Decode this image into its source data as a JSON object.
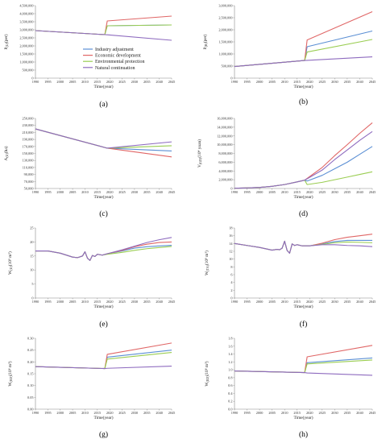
{
  "colors": {
    "industry": "#5b8fd4",
    "economic": "#e06666",
    "environment": "#9acd52",
    "natural": "#8e6bbf"
  },
  "legend": {
    "placement": "inside-right",
    "entries": [
      {
        "label": "Industry adjustment",
        "color": "#5b8fd4"
      },
      {
        "label": "Economic development",
        "color": "#e06666"
      },
      {
        "label": "Environmental protection",
        "color": "#9acd52"
      },
      {
        "label": "Natural continuation",
        "color": "#8e6bbf"
      }
    ]
  },
  "chart_data": [
    {
      "type": "line",
      "caption": "(a)",
      "ylabel": "P",
      "ysub": "(U)",
      "yunit": "(per)",
      "xlabel": "Time(year)",
      "x": [
        1990,
        2018,
        2019,
        2045
      ],
      "xticks": [
        1990,
        1995,
        2000,
        2005,
        2010,
        2015,
        2020,
        2025,
        2030,
        2035,
        2040,
        2045
      ],
      "ylim": [
        0,
        4500000
      ],
      "yticks": [
        0,
        500000,
        1000000,
        1500000,
        2000000,
        2500000,
        3000000,
        3500000,
        4000000,
        4500000
      ],
      "yticklabels": [
        "0",
        "500,000",
        "1,000,000",
        "1,500,000",
        "2,000,000",
        "2,500,000",
        "3,000,000",
        "3,500,000",
        "4,000,000",
        "4,500,000"
      ],
      "series": [
        {
          "key": "industry",
          "values": [
            2950000,
            2700000,
            3250000,
            3300000
          ]
        },
        {
          "key": "economic",
          "values": [
            2950000,
            2700000,
            3550000,
            3850000
          ]
        },
        {
          "key": "environment",
          "values": [
            2950000,
            2700000,
            3250000,
            3300000
          ]
        },
        {
          "key": "natural",
          "values": [
            2950000,
            2700000,
            2690000,
            2350000
          ]
        }
      ]
    },
    {
      "type": "line",
      "caption": "(b)",
      "ylabel": "P",
      "ysub": "(R)",
      "yunit": "(per)",
      "xlabel": "Time(year)",
      "x": [
        1990,
        2018,
        2019,
        2045
      ],
      "xticks": [
        1990,
        1995,
        2000,
        2005,
        2010,
        2015,
        2020,
        2025,
        2030,
        2035,
        2040,
        2045
      ],
      "ylim": [
        0,
        3000000
      ],
      "yticks": [
        0,
        500000,
        1000000,
        1500000,
        2000000,
        2500000,
        3000000
      ],
      "yticklabels": [
        "0",
        "500,000",
        "1,000,000",
        "1,500,000",
        "2,000,000",
        "2,500,000",
        "3,000,000"
      ],
      "series": [
        {
          "key": "industry",
          "values": [
            480000,
            730000,
            1300000,
            1950000
          ]
        },
        {
          "key": "economic",
          "values": [
            480000,
            730000,
            1580000,
            2750000
          ]
        },
        {
          "key": "environment",
          "values": [
            480000,
            730000,
            1080000,
            1600000
          ]
        },
        {
          "key": "natural",
          "values": [
            480000,
            730000,
            735000,
            880000
          ]
        }
      ]
    },
    {
      "type": "line",
      "caption": "(c)",
      "ylabel": "A",
      "ysub": "(U)",
      "yunit": "(ha)",
      "xlabel": "Time(year)",
      "x": [
        1990,
        2019,
        2045
      ],
      "xticks": [
        1990,
        1995,
        2000,
        2005,
        2010,
        2015,
        2020,
        2025,
        2030,
        2035,
        2040,
        2045
      ],
      "ylim": [
        50000,
        250000
      ],
      "yticks": [
        50000,
        70000,
        90000,
        110000,
        130000,
        150000,
        170000,
        190000,
        210000,
        230000,
        250000
      ],
      "yticklabels": [
        "50,000",
        "70,000",
        "90,000",
        "110,000",
        "130,000",
        "150,000",
        "170,000",
        "190,000",
        "210,000",
        "230,000",
        "250,000"
      ],
      "series": [
        {
          "key": "industry",
          "values": [
            220000,
            165000,
            157000
          ]
        },
        {
          "key": "economic",
          "values": [
            220000,
            165000,
            140000
          ]
        },
        {
          "key": "environment",
          "values": [
            220000,
            165000,
            172000
          ]
        },
        {
          "key": "natural",
          "values": [
            220000,
            165000,
            183000
          ]
        }
      ]
    },
    {
      "type": "line",
      "caption": "(d)",
      "ylabel": "V",
      "ysub": "(GD)",
      "yunit": "(10⁴ yuan)",
      "xlabel": "Time(year)",
      "x": [
        1990,
        1995,
        2000,
        2005,
        2010,
        2015,
        2018,
        2019,
        2025,
        2030,
        2035,
        2040,
        2045
      ],
      "xticks": [
        1990,
        1995,
        2000,
        2005,
        2010,
        2015,
        2020,
        2025,
        2030,
        2035,
        2040,
        2045
      ],
      "ylim": [
        0,
        16000000
      ],
      "yticks": [
        0,
        2000000,
        4000000,
        6000000,
        8000000,
        10000000,
        12000000,
        14000000,
        16000000
      ],
      "yticklabels": [
        "0",
        "2,000,000",
        "4,000,000",
        "6,000,000",
        "8,000,000",
        "10,000,000",
        "12,000,000",
        "14,000,000",
        "16,000,000"
      ],
      "series": [
        {
          "key": "industry",
          "values": [
            50000,
            120000,
            250000,
            500000,
            900000,
            1500000,
            1900000,
            1700000,
            3000000,
            4500000,
            6000000,
            7800000,
            9600000
          ]
        },
        {
          "key": "economic",
          "values": [
            50000,
            120000,
            250000,
            500000,
            900000,
            1500000,
            1900000,
            2300000,
            4800000,
            7500000,
            10000000,
            12600000,
            15000000
          ]
        },
        {
          "key": "environment",
          "values": [
            50000,
            120000,
            250000,
            500000,
            900000,
            1500000,
            1900000,
            900000,
            1400000,
            2000000,
            2600000,
            3200000,
            3800000
          ]
        },
        {
          "key": "natural",
          "values": [
            50000,
            120000,
            250000,
            500000,
            900000,
            1500000,
            1900000,
            2200000,
            4200000,
            6600000,
            8800000,
            11000000,
            13000000
          ]
        }
      ]
    },
    {
      "type": "line",
      "caption": "(e)",
      "ylabel": "W",
      "ysub": "(U)",
      "yunit": "(10⁸ m³)",
      "xlabel": "Time(year)",
      "x": [
        1990,
        1995,
        2000,
        2005,
        2007,
        2009,
        2010,
        2011,
        2012,
        2013,
        2014,
        2015,
        2017,
        2019,
        2025,
        2030,
        2035,
        2040,
        2045
      ],
      "xticks": [
        1990,
        1995,
        2000,
        2005,
        2010,
        2015,
        2020,
        2025,
        2030,
        2035,
        2040,
        2045
      ],
      "ylim": [
        0,
        25
      ],
      "yticks": [
        0,
        5,
        10,
        15,
        20,
        25
      ],
      "yticklabels": [
        "0",
        "5",
        "10",
        "15",
        "20",
        "25"
      ],
      "series": [
        {
          "key": "industry",
          "values": [
            16.8,
            16.8,
            16,
            14.6,
            14.4,
            15,
            16.5,
            14.2,
            13.4,
            15.2,
            14.8,
            15.6,
            15.3,
            15.8,
            16.8,
            17.8,
            18.3,
            18.6,
            18.8
          ]
        },
        {
          "key": "economic",
          "values": [
            16.8,
            16.8,
            16,
            14.6,
            14.4,
            15,
            16.5,
            14.2,
            13.4,
            15.2,
            14.8,
            15.6,
            15.3,
            15.8,
            17,
            18.3,
            19.2,
            19.8,
            20
          ]
        },
        {
          "key": "environment",
          "values": [
            16.8,
            16.8,
            16,
            14.6,
            14.4,
            15,
            16.5,
            14.2,
            13.4,
            15.2,
            14.8,
            15.6,
            15.3,
            15.6,
            16.3,
            17,
            17.6,
            18,
            18.4
          ]
        },
        {
          "key": "natural",
          "values": [
            16.8,
            16.8,
            16,
            14.6,
            14.4,
            15,
            16.5,
            14.2,
            13.4,
            15.2,
            14.8,
            15.6,
            15.3,
            15.8,
            17.2,
            18.5,
            19.8,
            20.8,
            21.6
          ]
        }
      ]
    },
    {
      "type": "line",
      "caption": "(f)",
      "ylabel": "W",
      "ysub": "(TA)",
      "yunit": "(10⁸ m³)",
      "xlabel": "Time(year)",
      "x": [
        1990,
        1995,
        2000,
        2005,
        2007,
        2008,
        2009,
        2010,
        2011,
        2012,
        2013,
        2014,
        2015,
        2017,
        2020,
        2025,
        2030,
        2035,
        2040,
        2045
      ],
      "xticks": [
        1990,
        1995,
        2000,
        2005,
        2010,
        2015,
        2020,
        2025,
        2030,
        2035,
        2040,
        2045
      ],
      "ylim": [
        0,
        18
      ],
      "yticks": [
        0,
        2,
        4,
        6,
        8,
        10,
        12,
        14,
        16,
        18
      ],
      "yticklabels": [
        "0",
        "2",
        "4",
        "6",
        "8",
        "10",
        "12",
        "14",
        "16",
        "18"
      ],
      "series": [
        {
          "key": "industry",
          "values": [
            14,
            13.5,
            13,
            12.3,
            12.5,
            12.4,
            12.8,
            14.6,
            12.2,
            11.5,
            13.9,
            13.5,
            13.7,
            13.4,
            13.4,
            13.9,
            14.5,
            14.8,
            14.8,
            14.8
          ]
        },
        {
          "key": "economic",
          "values": [
            14,
            13.5,
            13,
            12.3,
            12.5,
            12.4,
            12.8,
            14.6,
            12.2,
            11.5,
            13.9,
            13.5,
            13.7,
            13.4,
            13.4,
            14.1,
            15,
            15.6,
            16,
            16.4
          ]
        },
        {
          "key": "environment",
          "values": [
            14,
            13.5,
            13,
            12.3,
            12.5,
            12.4,
            12.8,
            14.6,
            12.2,
            11.5,
            13.9,
            13.5,
            13.7,
            13.4,
            13.4,
            13.8,
            14.2,
            14.4,
            14.3,
            14.2
          ]
        },
        {
          "key": "natural",
          "values": [
            14,
            13.5,
            13,
            12.3,
            12.5,
            12.4,
            12.8,
            14.6,
            12.2,
            11.5,
            13.9,
            13.5,
            13.7,
            13.4,
            13.4,
            13.7,
            13.7,
            13.5,
            13.4,
            13.2
          ]
        }
      ]
    },
    {
      "type": "line",
      "caption": "(g)",
      "ylabel": "W",
      "ysub": "(ED)",
      "yunit": "(10⁸ m³)",
      "xlabel": "Time(year)",
      "x": [
        1990,
        2018,
        2019,
        2045
      ],
      "xticks": [
        1990,
        1995,
        2000,
        2005,
        2010,
        2015,
        2020,
        2025,
        2030,
        2035,
        2040,
        2045
      ],
      "ylim": [
        0,
        0.3
      ],
      "yticks": [
        0,
        0.05,
        0.1,
        0.15,
        0.2,
        0.25,
        0.3
      ],
      "yticklabels": [
        "0.00",
        "0.05",
        "0.10",
        "0.15",
        "0.20",
        "0.25",
        "0.30"
      ],
      "series": [
        {
          "key": "industry",
          "values": [
            0.18,
            0.172,
            0.22,
            0.25
          ]
        },
        {
          "key": "economic",
          "values": [
            0.18,
            0.172,
            0.232,
            0.28
          ]
        },
        {
          "key": "environment",
          "values": [
            0.18,
            0.172,
            0.212,
            0.24
          ]
        },
        {
          "key": "natural",
          "values": [
            0.18,
            0.172,
            0.173,
            0.182
          ]
        }
      ]
    },
    {
      "type": "line",
      "caption": "(h)",
      "ylabel": "W",
      "ysub": "(ED)",
      "yunit": "(10⁸ m³)",
      "xlabel": "Time(year)",
      "x": [
        1990,
        2018,
        2019,
        2045
      ],
      "xticks": [
        1990,
        1995,
        2000,
        2005,
        2010,
        2015,
        2020,
        2025,
        2030,
        2035,
        2040,
        2045
      ],
      "ylim": [
        0,
        1.8
      ],
      "yticks": [
        0,
        0.2,
        0.4,
        0.6,
        0.8,
        1,
        1.2,
        1.4,
        1.6,
        1.8
      ],
      "yticklabels": [
        "0.0",
        "0.2",
        "0.4",
        "0.6",
        "0.8",
        "1.0",
        "1.2",
        "1.4",
        "1.6",
        "1.8"
      ],
      "series": [
        {
          "key": "industry",
          "values": [
            0.97,
            0.93,
            1.18,
            1.3
          ]
        },
        {
          "key": "economic",
          "values": [
            0.97,
            0.93,
            1.33,
            1.62
          ]
        },
        {
          "key": "environment",
          "values": [
            0.97,
            0.93,
            1.15,
            1.25
          ]
        },
        {
          "key": "natural",
          "values": [
            0.97,
            0.93,
            0.92,
            0.86
          ]
        }
      ]
    }
  ]
}
